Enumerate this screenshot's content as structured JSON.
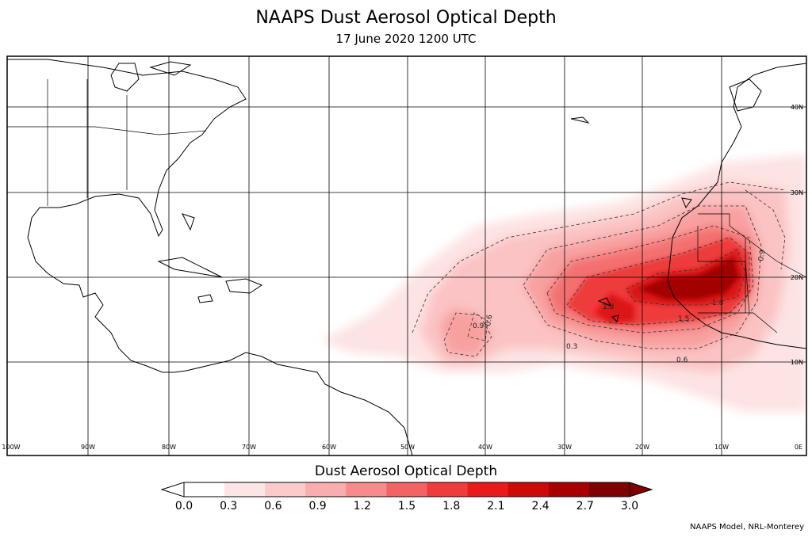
{
  "title": "NAAPS Dust Aerosol Optical Depth",
  "subtitle": "17 June 2020 1200 UTC",
  "map": {
    "lon_labels": [
      "100W",
      "90W",
      "80W",
      "70W",
      "60W",
      "50W",
      "40W",
      "30W",
      "20W",
      "10W",
      "0E"
    ],
    "lat_labels": [
      "40N",
      "30N",
      "20N",
      "10N"
    ],
    "contour_labels": [
      "0.9",
      "0.6",
      "0.3",
      "1.5",
      "0.6",
      "0.9",
      "1.8",
      "1.8"
    ],
    "colors": {
      "land_outline": "#000000",
      "grid": "#000000",
      "ocean": "#ffffff"
    }
  },
  "colorbar": {
    "title": "Dust Aerosol Optical Depth",
    "ticks": [
      "0.0",
      "0.3",
      "0.6",
      "0.9",
      "1.2",
      "1.5",
      "1.8",
      "2.1",
      "2.4",
      "2.7",
      "3.0"
    ],
    "colors": [
      "#ffffff",
      "#fde5e5",
      "#fccaca",
      "#f9adad",
      "#f78a8a",
      "#f36363",
      "#ef3b3b",
      "#e81a1a",
      "#cc0a0a",
      "#a80000",
      "#800000"
    ]
  },
  "credit": "NAAPS Model, NRL-Monterey"
}
